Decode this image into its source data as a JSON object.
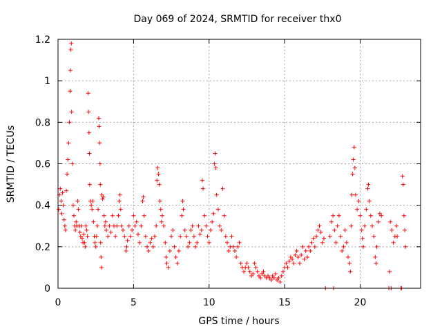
{
  "chart_data": {
    "type": "scatter",
    "title": "Day 069 of 2024, SRMTID for receiver thx0",
    "xlabel": "GPS time / hours",
    "ylabel": "SRMTID / TECUs",
    "xlim": [
      0,
      24
    ],
    "ylim": [
      0,
      1.2
    ],
    "x_ticks": [
      0,
      5,
      10,
      15,
      20
    ],
    "x_tick_labels": [
      "0",
      "5",
      "10",
      "15",
      "20"
    ],
    "y_ticks": [
      0,
      0.2,
      0.4,
      0.6,
      0.8,
      1.0,
      1.2
    ],
    "y_tick_labels": [
      "0",
      "0.2",
      "0.4",
      "0.6",
      "0.8",
      "1",
      "1.2"
    ],
    "grid": true,
    "marker": "plus",
    "series_color": "#ff0000",
    "series": [
      {
        "name": "SRMTID",
        "points": [
          [
            0.05,
            0.38
          ],
          [
            0.1,
            0.45
          ],
          [
            0.15,
            0.48
          ],
          [
            0.2,
            0.42
          ],
          [
            0.25,
            0.36
          ],
          [
            0.3,
            0.46
          ],
          [
            0.35,
            0.4
          ],
          [
            0.4,
            0.33
          ],
          [
            0.45,
            0.3
          ],
          [
            0.5,
            0.28
          ],
          [
            0.55,
            0.47
          ],
          [
            0.6,
            0.55
          ],
          [
            0.65,
            0.62
          ],
          [
            0.7,
            0.7
          ],
          [
            0.75,
            0.8
          ],
          [
            0.8,
            0.95
          ],
          [
            0.82,
            1.05
          ],
          [
            0.85,
            1.15
          ],
          [
            0.88,
            1.18
          ],
          [
            0.9,
            0.85
          ],
          [
            0.95,
            0.6
          ],
          [
            1.0,
            0.4
          ],
          [
            1.05,
            0.35
          ],
          [
            1.1,
            0.3
          ],
          [
            1.15,
            0.28
          ],
          [
            1.2,
            0.32
          ],
          [
            1.25,
            0.3
          ],
          [
            1.3,
            0.42
          ],
          [
            1.35,
            0.38
          ],
          [
            1.4,
            0.3
          ],
          [
            1.45,
            0.27
          ],
          [
            1.5,
            0.25
          ],
          [
            1.55,
            0.3
          ],
          [
            1.6,
            0.24
          ],
          [
            1.65,
            0.22
          ],
          [
            1.7,
            0.26
          ],
          [
            1.75,
            0.22
          ],
          [
            1.8,
            0.2
          ],
          [
            1.85,
            0.3
          ],
          [
            1.9,
            0.28
          ],
          [
            1.95,
            0.25
          ],
          [
            2.0,
            0.94
          ],
          [
            2.02,
            0.85
          ],
          [
            2.05,
            0.75
          ],
          [
            2.08,
            0.65
          ],
          [
            2.1,
            0.5
          ],
          [
            2.15,
            0.42
          ],
          [
            2.2,
            0.4
          ],
          [
            2.25,
            0.38
          ],
          [
            2.3,
            0.42
          ],
          [
            2.35,
            0.32
          ],
          [
            2.4,
            0.25
          ],
          [
            2.45,
            0.22
          ],
          [
            2.5,
            0.2
          ],
          [
            2.55,
            0.25
          ],
          [
            2.6,
            0.3
          ],
          [
            2.65,
            0.38
          ],
          [
            2.7,
            0.82
          ],
          [
            2.72,
            0.78
          ],
          [
            2.75,
            0.7
          ],
          [
            2.78,
            0.6
          ],
          [
            2.8,
            0.5
          ],
          [
            2.82,
            0.22
          ],
          [
            2.85,
            0.15
          ],
          [
            2.88,
            0.1
          ],
          [
            2.9,
            0.45
          ],
          [
            2.95,
            0.43
          ],
          [
            3.0,
            0.44
          ],
          [
            3.05,
            0.35
          ],
          [
            3.1,
            0.3
          ],
          [
            3.15,
            0.32
          ],
          [
            3.2,
            0.28
          ],
          [
            3.3,
            0.25
          ],
          [
            3.4,
            0.3
          ],
          [
            3.5,
            0.27
          ],
          [
            3.6,
            0.35
          ],
          [
            3.7,
            0.3
          ],
          [
            3.8,
            0.25
          ],
          [
            3.9,
            0.3
          ],
          [
            4.0,
            0.35
          ],
          [
            4.05,
            0.42
          ],
          [
            4.1,
            0.45
          ],
          [
            4.15,
            0.38
          ],
          [
            4.2,
            0.3
          ],
          [
            4.3,
            0.28
          ],
          [
            4.4,
            0.25
          ],
          [
            4.5,
            0.18
          ],
          [
            4.55,
            0.2
          ],
          [
            4.6,
            0.23
          ],
          [
            4.7,
            0.3
          ],
          [
            4.8,
            0.25
          ],
          [
            4.9,
            0.28
          ],
          [
            5.0,
            0.35
          ],
          [
            5.1,
            0.3
          ],
          [
            5.2,
            0.32
          ],
          [
            5.3,
            0.26
          ],
          [
            5.4,
            0.22
          ],
          [
            5.5,
            0.3
          ],
          [
            5.6,
            0.42
          ],
          [
            5.65,
            0.44
          ],
          [
            5.7,
            0.35
          ],
          [
            5.8,
            0.25
          ],
          [
            5.9,
            0.2
          ],
          [
            6.0,
            0.18
          ],
          [
            6.1,
            0.22
          ],
          [
            6.2,
            0.24
          ],
          [
            6.3,
            0.2
          ],
          [
            6.4,
            0.25
          ],
          [
            6.5,
            0.3
          ],
          [
            6.55,
            0.52
          ],
          [
            6.6,
            0.58
          ],
          [
            6.65,
            0.55
          ],
          [
            6.7,
            0.5
          ],
          [
            6.75,
            0.42
          ],
          [
            6.8,
            0.38
          ],
          [
            6.85,
            0.32
          ],
          [
            6.9,
            0.35
          ],
          [
            7.0,
            0.3
          ],
          [
            7.1,
            0.22
          ],
          [
            7.15,
            0.15
          ],
          [
            7.2,
            0.12
          ],
          [
            7.3,
            0.1
          ],
          [
            7.4,
            0.18
          ],
          [
            7.5,
            0.25
          ],
          [
            7.6,
            0.28
          ],
          [
            7.7,
            0.2
          ],
          [
            7.8,
            0.15
          ],
          [
            7.9,
            0.12
          ],
          [
            8.0,
            0.18
          ],
          [
            8.1,
            0.25
          ],
          [
            8.2,
            0.35
          ],
          [
            8.25,
            0.42
          ],
          [
            8.3,
            0.38
          ],
          [
            8.4,
            0.28
          ],
          [
            8.5,
            0.25
          ],
          [
            8.6,
            0.2
          ],
          [
            8.7,
            0.22
          ],
          [
            8.8,
            0.28
          ],
          [
            8.9,
            0.3
          ],
          [
            9.0,
            0.25
          ],
          [
            9.1,
            0.2
          ],
          [
            9.2,
            0.22
          ],
          [
            9.3,
            0.3
          ],
          [
            9.4,
            0.26
          ],
          [
            9.5,
            0.28
          ],
          [
            9.55,
            0.52
          ],
          [
            9.6,
            0.48
          ],
          [
            9.7,
            0.35
          ],
          [
            9.8,
            0.3
          ],
          [
            9.9,
            0.25
          ],
          [
            10.0,
            0.22
          ],
          [
            10.1,
            0.28
          ],
          [
            10.2,
            0.32
          ],
          [
            10.3,
            0.36
          ],
          [
            10.35,
            0.6
          ],
          [
            10.4,
            0.65
          ],
          [
            10.45,
            0.58
          ],
          [
            10.5,
            0.45
          ],
          [
            10.6,
            0.38
          ],
          [
            10.7,
            0.3
          ],
          [
            10.8,
            0.28
          ],
          [
            10.9,
            0.48
          ],
          [
            11.0,
            0.35
          ],
          [
            11.1,
            0.25
          ],
          [
            11.2,
            0.22
          ],
          [
            11.3,
            0.18
          ],
          [
            11.4,
            0.2
          ],
          [
            11.5,
            0.25
          ],
          [
            11.6,
            0.2
          ],
          [
            11.7,
            0.18
          ],
          [
            11.8,
            0.15
          ],
          [
            11.9,
            0.2
          ],
          [
            12.0,
            0.22
          ],
          [
            12.1,
            0.12
          ],
          [
            12.2,
            0.1
          ],
          [
            12.3,
            0.08
          ],
          [
            12.4,
            0.1
          ],
          [
            12.5,
            0.12
          ],
          [
            12.6,
            0.1
          ],
          [
            12.7,
            0.08
          ],
          [
            12.8,
            0.06
          ],
          [
            12.9,
            0.07
          ],
          [
            13.0,
            0.12
          ],
          [
            13.1,
            0.1
          ],
          [
            13.2,
            0.08
          ],
          [
            13.3,
            0.06
          ],
          [
            13.4,
            0.05
          ],
          [
            13.5,
            0.07
          ],
          [
            13.6,
            0.08
          ],
          [
            13.7,
            0.06
          ],
          [
            13.8,
            0.05
          ],
          [
            13.9,
            0.06
          ],
          [
            14.0,
            0.05
          ],
          [
            14.1,
            0.04
          ],
          [
            14.2,
            0.06
          ],
          [
            14.3,
            0.05
          ],
          [
            14.4,
            0.07
          ],
          [
            14.5,
            0.04
          ],
          [
            14.6,
            0.05
          ],
          [
            14.7,
            0.03
          ],
          [
            14.8,
            0.06
          ],
          [
            14.9,
            0.08
          ],
          [
            15.0,
            0.1
          ],
          [
            15.1,
            0.12
          ],
          [
            15.2,
            0.1
          ],
          [
            15.3,
            0.13
          ],
          [
            15.4,
            0.15
          ],
          [
            15.5,
            0.14
          ],
          [
            15.6,
            0.12
          ],
          [
            15.7,
            0.16
          ],
          [
            15.8,
            0.18
          ],
          [
            15.9,
            0.15
          ],
          [
            16.0,
            0.12
          ],
          [
            16.1,
            0.16
          ],
          [
            16.2,
            0.2
          ],
          [
            16.3,
            0.14
          ],
          [
            16.4,
            0.18
          ],
          [
            16.5,
            0.15
          ],
          [
            16.6,
            0.2
          ],
          [
            16.7,
            0.18
          ],
          [
            16.8,
            0.22
          ],
          [
            16.9,
            0.24
          ],
          [
            17.0,
            0.2
          ],
          [
            17.1,
            0.25
          ],
          [
            17.2,
            0.28
          ],
          [
            17.3,
            0.3
          ],
          [
            17.4,
            0.27
          ],
          [
            17.5,
            0.22
          ],
          [
            17.6,
            0.24
          ],
          [
            17.7,
            0.0
          ],
          [
            18.0,
            0.25
          ],
          [
            18.1,
            0.32
          ],
          [
            18.2,
            0.35
          ],
          [
            18.25,
            0.0
          ],
          [
            18.3,
            0.28
          ],
          [
            18.4,
            0.22
          ],
          [
            18.5,
            0.3
          ],
          [
            18.6,
            0.35
          ],
          [
            18.7,
            0.25
          ],
          [
            18.8,
            0.18
          ],
          [
            18.9,
            0.2
          ],
          [
            19.0,
            0.28
          ],
          [
            19.1,
            0.22
          ],
          [
            19.2,
            0.15
          ],
          [
            19.3,
            0.12
          ],
          [
            19.35,
            0.08
          ],
          [
            19.4,
            0.3
          ],
          [
            19.45,
            0.45
          ],
          [
            19.5,
            0.55
          ],
          [
            19.55,
            0.62
          ],
          [
            19.6,
            0.68
          ],
          [
            19.65,
            0.58
          ],
          [
            19.7,
            0.45
          ],
          [
            19.8,
            0.38
          ],
          [
            19.9,
            0.42
          ],
          [
            20.0,
            0.35
          ],
          [
            20.1,
            0.28
          ],
          [
            20.15,
            0.24
          ],
          [
            20.2,
            0.2
          ],
          [
            20.3,
            0.3
          ],
          [
            20.4,
            0.38
          ],
          [
            20.5,
            0.48
          ],
          [
            20.55,
            0.5
          ],
          [
            20.6,
            0.42
          ],
          [
            20.7,
            0.35
          ],
          [
            20.8,
            0.3
          ],
          [
            20.9,
            0.25
          ],
          [
            21.0,
            0.15
          ],
          [
            21.05,
            0.12
          ],
          [
            21.1,
            0.2
          ],
          [
            21.2,
            0.32
          ],
          [
            21.3,
            0.36
          ],
          [
            21.4,
            0.35
          ],
          [
            21.9,
            0.0
          ],
          [
            21.95,
            0.08
          ],
          [
            22.0,
            0.32
          ],
          [
            22.05,
            0.0
          ],
          [
            22.1,
            0.28
          ],
          [
            22.2,
            0.22
          ],
          [
            22.3,
            0.25
          ],
          [
            22.4,
            0.3
          ],
          [
            22.45,
            0.25
          ],
          [
            22.7,
            0.0
          ],
          [
            22.75,
            0.0
          ],
          [
            22.8,
            0.54
          ],
          [
            22.85,
            0.5
          ],
          [
            22.9,
            0.35
          ],
          [
            22.95,
            0.28
          ],
          [
            23.0,
            0.2
          ]
        ]
      }
    ]
  }
}
